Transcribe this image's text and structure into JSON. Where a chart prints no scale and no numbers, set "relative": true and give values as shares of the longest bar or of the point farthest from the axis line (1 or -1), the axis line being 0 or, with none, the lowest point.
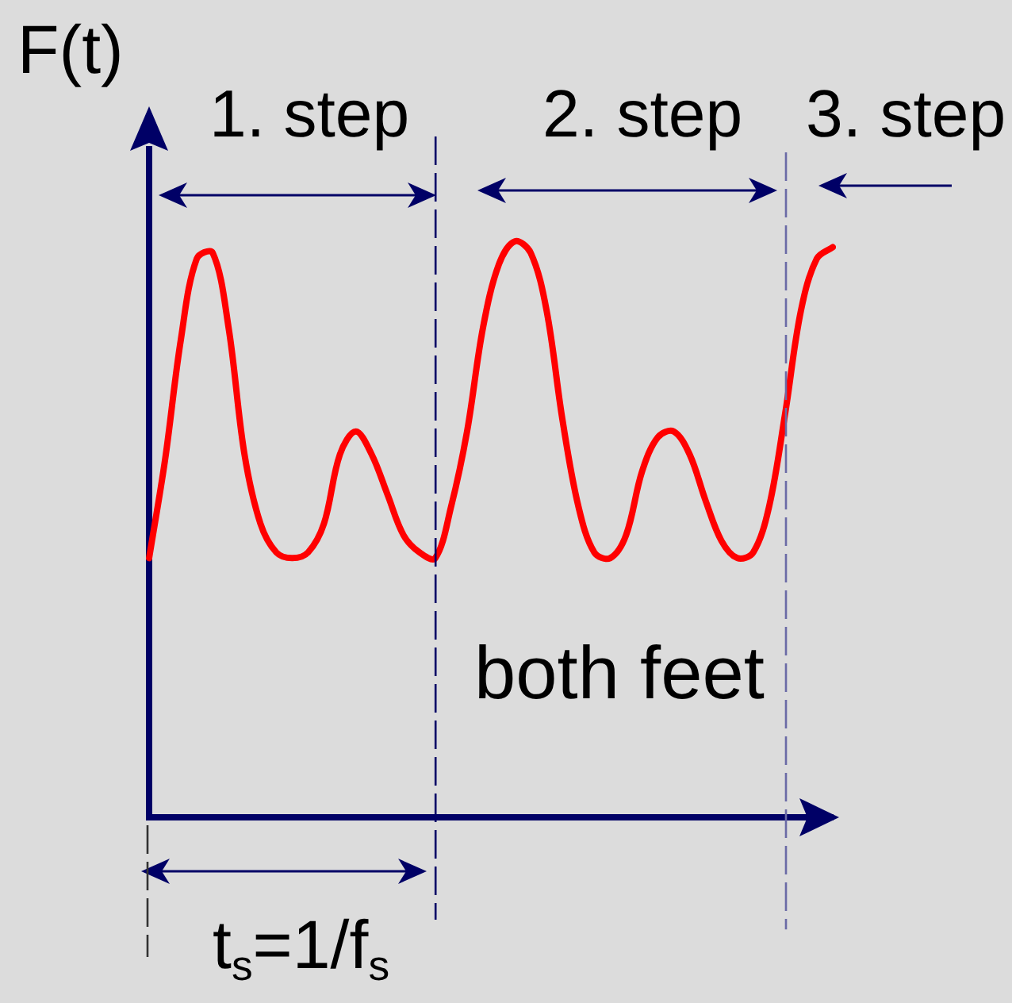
{
  "chart_data": {
    "type": "line",
    "ylabel": "F(t)",
    "annotations": [
      "1. step",
      "2. step",
      "3. step",
      "both feet",
      "t$_{s}$=1/f$_{s}$"
    ],
    "categories": [
      null,
      null,
      null,
      null,
      null,
      null,
      null,
      null,
      null,
      null,
      null,
      null,
      null,
      null,
      null,
      null,
      null,
      null,
      null,
      null,
      null,
      null,
      null,
      null,
      null,
      null,
      null,
      null,
      null,
      null,
      null,
      null,
      null,
      null,
      null,
      null,
      null,
      null,
      null,
      null,
      null,
      null,
      null,
      null
    ],
    "relative": true,
    "marker": "none",
    "series": [
      {
        "color": "#ff0000",
        "values": [
          0.45,
          0.62,
          0.83,
          0.97,
          0.98,
          0.85,
          0.63,
          0.51,
          0.46,
          0.45,
          0.46,
          0.51,
          0.63,
          0.67,
          0.63,
          0.56,
          0.49,
          0.46,
          0.45,
          0.54,
          0.67,
          0.85,
          0.96,
          1,
          0.98,
          0.88,
          0.69,
          0.54,
          0.46,
          0.45,
          0.49,
          0.6,
          0.66,
          0.67,
          0.63,
          0.55,
          0.48,
          0.45,
          0.46,
          0.54,
          0.7,
          0.88,
          0.97,
          0.99
        ]
      }
    ]
  }
}
